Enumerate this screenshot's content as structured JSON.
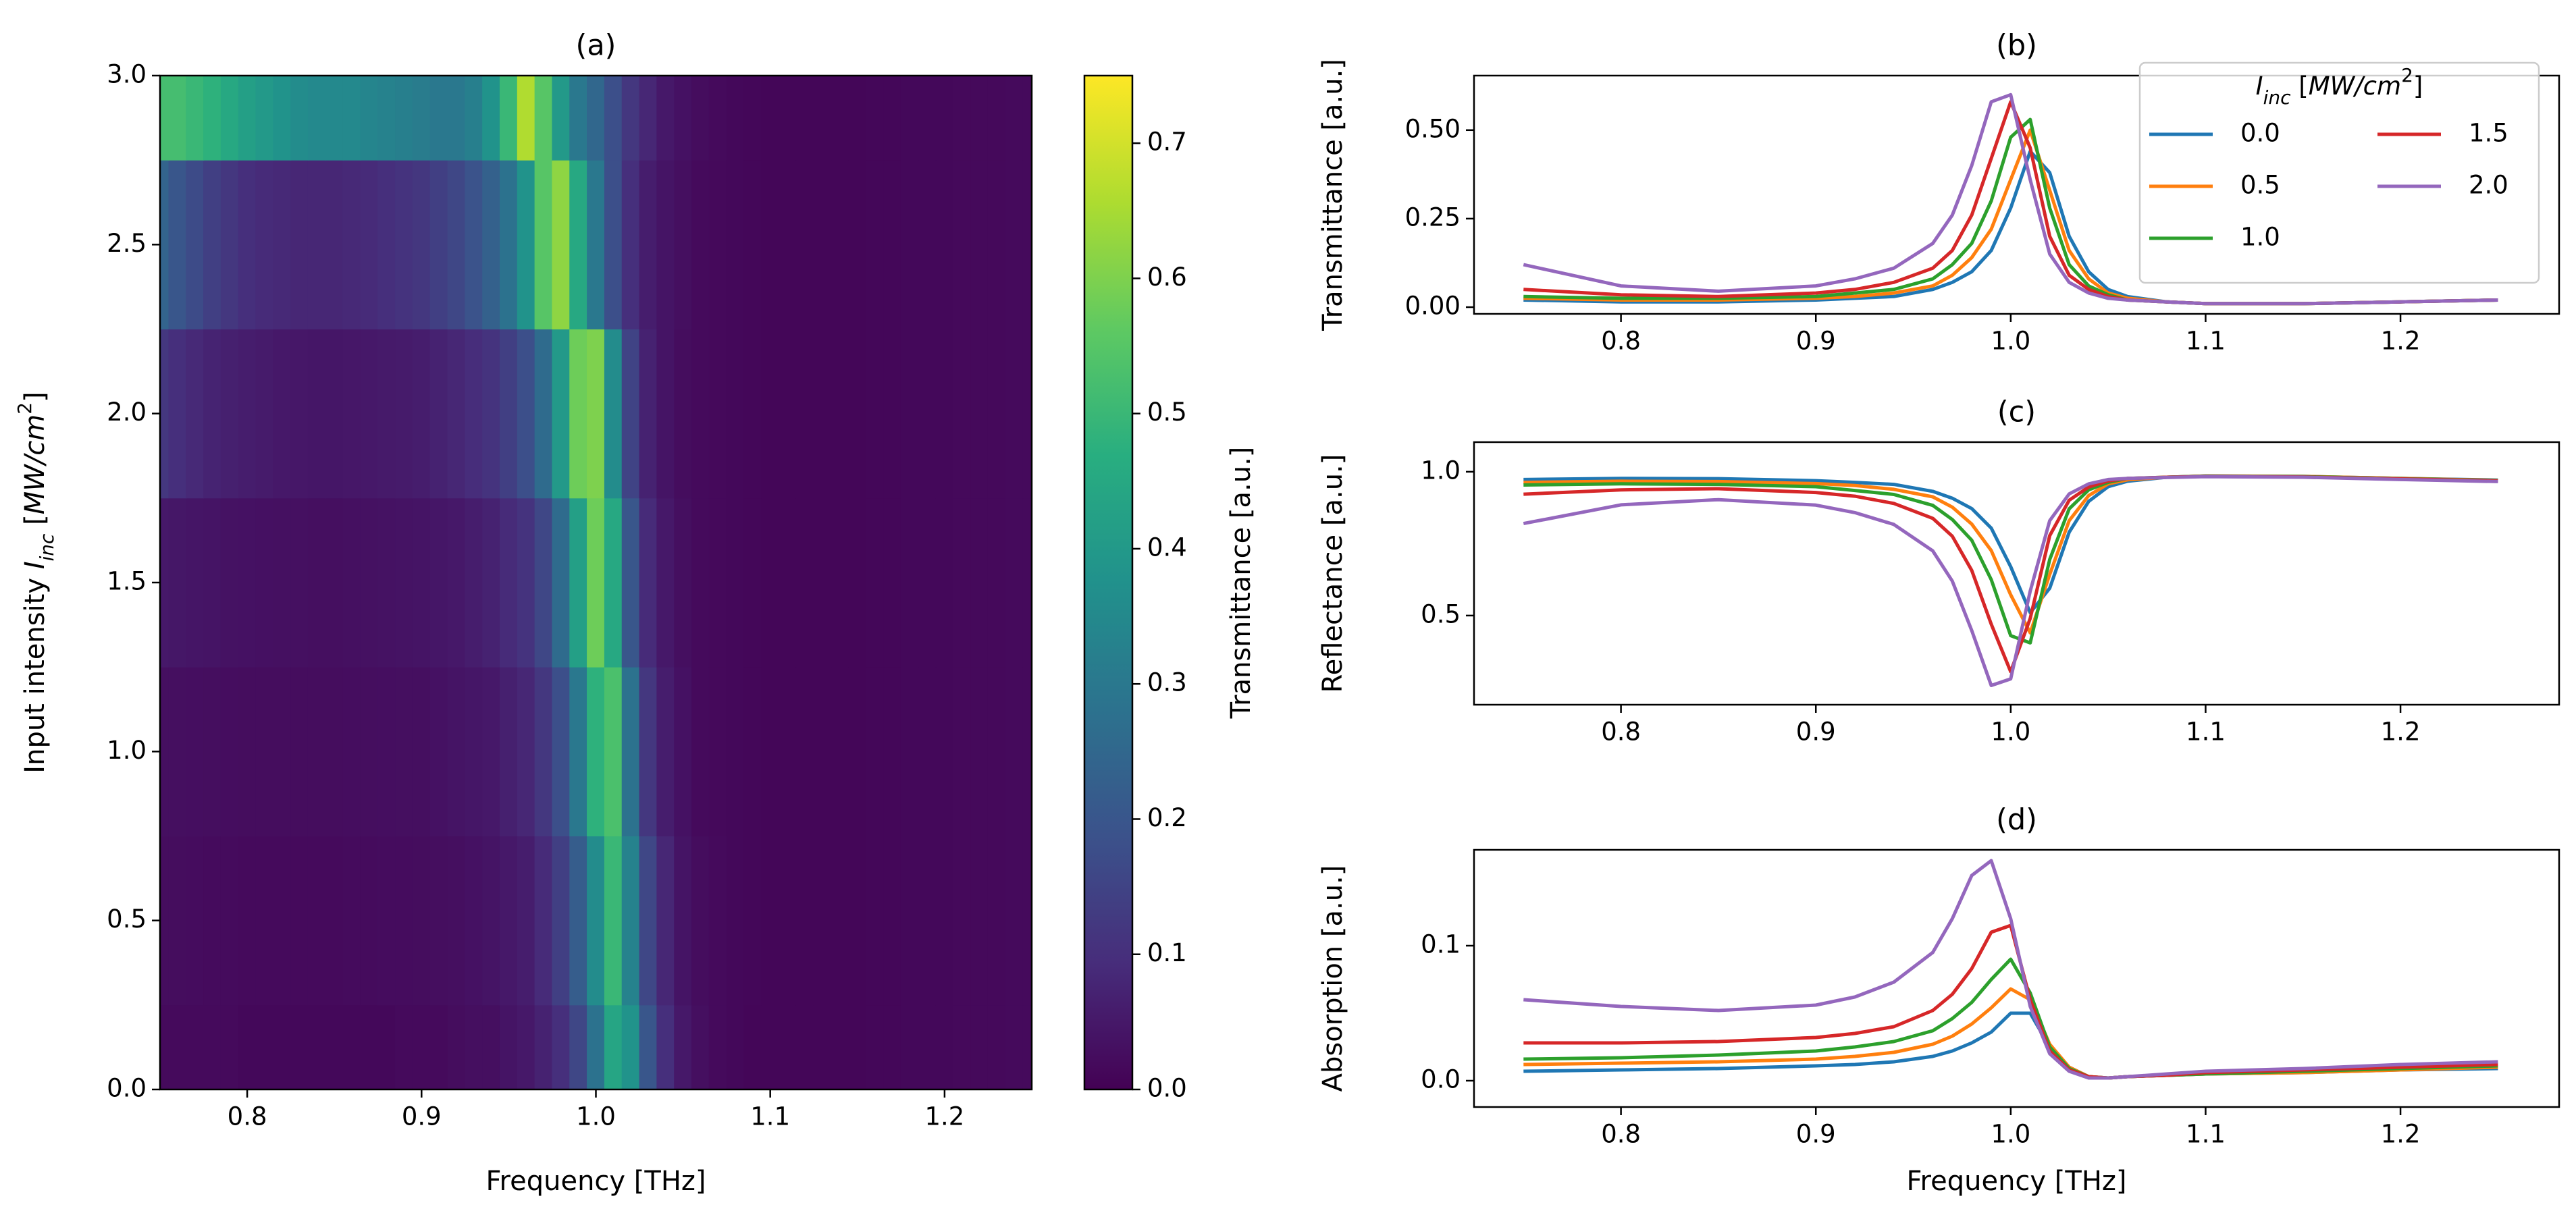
{
  "chart_data": [
    {
      "type": "heatmap",
      "title": "(a)",
      "xlabel": "Frequency [THz]",
      "ylabel": [
        {
          "text": "Input intensity "
        },
        {
          "text": "I",
          "style": "italic"
        },
        {
          "text": "inc",
          "style": "sub"
        },
        {
          "text": " ["
        },
        {
          "text": "MW/cm",
          "style": "italic"
        },
        {
          "text": "2",
          "style": "sup"
        },
        {
          "text": "]"
        }
      ],
      "x": [
        0.75,
        0.76,
        0.77,
        0.78,
        0.79,
        0.8,
        0.81,
        0.82,
        0.83,
        0.84,
        0.85,
        0.86,
        0.87,
        0.88,
        0.89,
        0.9,
        0.91,
        0.92,
        0.93,
        0.94,
        0.95,
        0.96,
        0.97,
        0.98,
        0.99,
        1.0,
        1.01,
        1.02,
        1.03,
        1.04,
        1.05,
        1.06,
        1.07,
        1.08,
        1.09,
        1.1,
        1.11,
        1.12,
        1.13,
        1.14,
        1.15,
        1.16,
        1.17,
        1.18,
        1.19,
        1.2,
        1.21,
        1.22,
        1.23,
        1.24,
        1.25
      ],
      "y": [
        0,
        0.5,
        1,
        1.5,
        2,
        2.5,
        3
      ],
      "values": [
        [
          0.02,
          0.02,
          0.02,
          0.02,
          0.02,
          0.015,
          0.015,
          0.015,
          0.015,
          0.015,
          0.015,
          0.015,
          0.015,
          0.015,
          0.02,
          0.02,
          0.02,
          0.025,
          0.03,
          0.03,
          0.04,
          0.05,
          0.07,
          0.1,
          0.16,
          0.28,
          0.44,
          0.38,
          0.2,
          0.1,
          0.05,
          0.03,
          0.02,
          0.015,
          0.01,
          0.01,
          0.01,
          0.01,
          0.01,
          0.01,
          0.01,
          0.012,
          0.013,
          0.014,
          0.015,
          0.015,
          0.016,
          0.017,
          0.018,
          0.019,
          0.02
        ],
        [
          0.025,
          0.025,
          0.024,
          0.022,
          0.021,
          0.02,
          0.02,
          0.02,
          0.02,
          0.02,
          0.02,
          0.021,
          0.022,
          0.023,
          0.024,
          0.025,
          0.027,
          0.03,
          0.035,
          0.04,
          0.05,
          0.06,
          0.09,
          0.14,
          0.22,
          0.36,
          0.5,
          0.33,
          0.16,
          0.08,
          0.04,
          0.025,
          0.02,
          0.015,
          0.012,
          0.01,
          0.01,
          0.01,
          0.01,
          0.01,
          0.01,
          0.012,
          0.013,
          0.014,
          0.015,
          0.015,
          0.016,
          0.017,
          0.018,
          0.019,
          0.02
        ],
        [
          0.03,
          0.03,
          0.028,
          0.027,
          0.026,
          0.025,
          0.025,
          0.025,
          0.025,
          0.025,
          0.025,
          0.026,
          0.027,
          0.028,
          0.029,
          0.03,
          0.035,
          0.04,
          0.045,
          0.05,
          0.065,
          0.08,
          0.12,
          0.18,
          0.3,
          0.48,
          0.53,
          0.28,
          0.12,
          0.06,
          0.035,
          0.02,
          0.017,
          0.015,
          0.012,
          0.01,
          0.01,
          0.01,
          0.01,
          0.01,
          0.01,
          0.012,
          0.013,
          0.014,
          0.015,
          0.015,
          0.016,
          0.017,
          0.018,
          0.019,
          0.02
        ],
        [
          0.05,
          0.046,
          0.043,
          0.04,
          0.037,
          0.035,
          0.033,
          0.032,
          0.031,
          0.03,
          0.03,
          0.032,
          0.034,
          0.036,
          0.038,
          0.04,
          0.045,
          0.05,
          0.06,
          0.07,
          0.09,
          0.11,
          0.16,
          0.26,
          0.42,
          0.58,
          0.45,
          0.2,
          0.09,
          0.05,
          0.03,
          0.02,
          0.017,
          0.015,
          0.012,
          0.01,
          0.01,
          0.01,
          0.01,
          0.01,
          0.01,
          0.012,
          0.013,
          0.014,
          0.015,
          0.015,
          0.016,
          0.017,
          0.018,
          0.019,
          0.02
        ],
        [
          0.12,
          0.1,
          0.085,
          0.072,
          0.065,
          0.06,
          0.055,
          0.05,
          0.047,
          0.045,
          0.045,
          0.047,
          0.05,
          0.053,
          0.056,
          0.06,
          0.07,
          0.08,
          0.095,
          0.11,
          0.14,
          0.18,
          0.26,
          0.4,
          0.58,
          0.6,
          0.36,
          0.15,
          0.07,
          0.04,
          0.025,
          0.02,
          0.017,
          0.015,
          0.012,
          0.01,
          0.01,
          0.01,
          0.01,
          0.01,
          0.01,
          0.012,
          0.013,
          0.014,
          0.015,
          0.015,
          0.016,
          0.017,
          0.018,
          0.019,
          0.02
        ],
        [
          0.24,
          0.2,
          0.17,
          0.14,
          0.12,
          0.1,
          0.09,
          0.085,
          0.08,
          0.08,
          0.08,
          0.085,
          0.09,
          0.1,
          0.11,
          0.12,
          0.14,
          0.16,
          0.19,
          0.23,
          0.28,
          0.38,
          0.55,
          0.62,
          0.45,
          0.3,
          0.18,
          0.1,
          0.06,
          0.04,
          0.03,
          0.02,
          0.017,
          0.015,
          0.012,
          0.01,
          0.01,
          0.01,
          0.01,
          0.01,
          0.01,
          0.012,
          0.013,
          0.014,
          0.015,
          0.015,
          0.016,
          0.017,
          0.018,
          0.019,
          0.02
        ],
        [
          0.52,
          0.52,
          0.5,
          0.48,
          0.45,
          0.42,
          0.4,
          0.38,
          0.36,
          0.35,
          0.35,
          0.35,
          0.34,
          0.33,
          0.32,
          0.31,
          0.3,
          0.3,
          0.32,
          0.38,
          0.5,
          0.66,
          0.55,
          0.4,
          0.3,
          0.25,
          0.18,
          0.12,
          0.08,
          0.05,
          0.035,
          0.025,
          0.02,
          0.015,
          0.012,
          0.01,
          0.01,
          0.01,
          0.01,
          0.01,
          0.01,
          0.012,
          0.013,
          0.014,
          0.015,
          0.015,
          0.016,
          0.017,
          0.018,
          0.019,
          0.02
        ]
      ],
      "xlim": [
        0.75,
        1.25
      ],
      "ylim": [
        0,
        3
      ],
      "xticks": [
        0.8,
        0.9,
        {
          "value": 1,
          "label": "1.0"
        },
        1.1,
        1.2
      ],
      "yticks": [
        {
          "value": 0,
          "label": "0.0"
        },
        0.5,
        {
          "value": 1,
          "label": "1.0"
        },
        1.5,
        {
          "value": 2,
          "label": "2.0"
        },
        2.5,
        {
          "value": 3,
          "label": "3.0"
        }
      ],
      "colormap": "viridis",
      "zlim": [
        0,
        0.75
      ],
      "zticks": [
        {
          "value": 0,
          "label": "0.0"
        },
        0.1,
        0.2,
        0.3,
        0.4,
        0.5,
        0.6,
        0.7
      ],
      "zlabel": "Transmittance [a.u.]"
    },
    {
      "type": "line",
      "title": "(b)",
      "ylabel": "Transmittance [a.u.]",
      "x": [
        0.75,
        0.8,
        0.85,
        0.9,
        0.92,
        0.94,
        0.96,
        0.97,
        0.98,
        0.99,
        1.0,
        1.01,
        1.02,
        1.03,
        1.04,
        1.05,
        1.06,
        1.08,
        1.1,
        1.15,
        1.2,
        1.25
      ],
      "series": [
        {
          "name": "0.0",
          "color": "#1f77b4",
          "values": [
            0.02,
            0.015,
            0.015,
            0.02,
            0.025,
            0.03,
            0.05,
            0.07,
            0.1,
            0.16,
            0.28,
            0.44,
            0.38,
            0.2,
            0.1,
            0.05,
            0.03,
            0.015,
            0.01,
            0.01,
            0.015,
            0.02
          ]
        },
        {
          "name": "0.5",
          "color": "#ff7f0e",
          "values": [
            0.025,
            0.02,
            0.02,
            0.025,
            0.03,
            0.04,
            0.06,
            0.09,
            0.14,
            0.22,
            0.36,
            0.5,
            0.33,
            0.16,
            0.08,
            0.04,
            0.025,
            0.015,
            0.01,
            0.01,
            0.015,
            0.02
          ]
        },
        {
          "name": "1.0",
          "color": "#2ca02c",
          "values": [
            0.03,
            0.025,
            0.025,
            0.03,
            0.04,
            0.05,
            0.08,
            0.12,
            0.18,
            0.3,
            0.48,
            0.53,
            0.28,
            0.12,
            0.06,
            0.035,
            0.02,
            0.015,
            0.01,
            0.01,
            0.015,
            0.02
          ]
        },
        {
          "name": "1.5",
          "color": "#d62728",
          "values": [
            0.05,
            0.035,
            0.03,
            0.04,
            0.05,
            0.07,
            0.11,
            0.16,
            0.26,
            0.42,
            0.58,
            0.45,
            0.2,
            0.09,
            0.05,
            0.03,
            0.02,
            0.015,
            0.01,
            0.01,
            0.015,
            0.02
          ]
        },
        {
          "name": "2.0",
          "color": "#9467bd",
          "values": [
            0.12,
            0.06,
            0.045,
            0.06,
            0.08,
            0.11,
            0.18,
            0.26,
            0.4,
            0.58,
            0.6,
            0.36,
            0.15,
            0.07,
            0.04,
            0.025,
            0.02,
            0.015,
            0.01,
            0.01,
            0.015,
            0.02
          ]
        }
      ],
      "legend_title": [
        {
          "text": "I",
          "style": "italic"
        },
        {
          "text": "inc",
          "style": "sub"
        },
        {
          "text": " ["
        },
        {
          "text": "MW/cm",
          "style": "italic"
        },
        {
          "text": "2",
          "style": "sup"
        },
        {
          "text": "]"
        }
      ],
      "legend": "upper right",
      "legend_columns": 2,
      "xlim": [
        0.7246,
        1.2814
      ],
      "ylim": [
        -0.019,
        0.654
      ],
      "xticks": [
        0.8,
        0.9,
        {
          "value": 1,
          "label": "1.0"
        },
        1.1,
        1.2
      ],
      "yticks": [
        {
          "value": 0,
          "label": "0.00"
        },
        0.25,
        {
          "value": 0.5,
          "label": "0.50"
        }
      ]
    },
    {
      "type": "line",
      "title": "(c)",
      "ylabel": "Reflectance [a.u.]",
      "x": [
        0.75,
        0.8,
        0.85,
        0.9,
        0.92,
        0.94,
        0.96,
        0.97,
        0.98,
        0.99,
        1.0,
        1.01,
        1.02,
        1.03,
        1.04,
        1.05,
        1.06,
        1.08,
        1.1,
        1.15,
        1.2,
        1.25
      ],
      "series": [
        {
          "name": "0.0",
          "color": "#1f77b4",
          "values": [
            0.973,
            0.977,
            0.976,
            0.969,
            0.963,
            0.956,
            0.932,
            0.908,
            0.872,
            0.804,
            0.67,
            0.51,
            0.595,
            0.79,
            0.897,
            0.948,
            0.967,
            0.981,
            0.985,
            0.984,
            0.977,
            0.971
          ]
        },
        {
          "name": "0.5",
          "color": "#ff7f0e",
          "values": [
            0.963,
            0.967,
            0.966,
            0.959,
            0.952,
            0.939,
            0.913,
            0.877,
            0.818,
            0.726,
            0.572,
            0.44,
            0.643,
            0.83,
            0.917,
            0.958,
            0.972,
            0.981,
            0.985,
            0.984,
            0.977,
            0.97
          ]
        },
        {
          "name": "1.0",
          "color": "#2ca02c",
          "values": [
            0.954,
            0.958,
            0.956,
            0.948,
            0.935,
            0.921,
            0.883,
            0.834,
            0.762,
            0.625,
            0.43,
            0.405,
            0.695,
            0.871,
            0.937,
            0.963,
            0.977,
            0.981,
            0.985,
            0.983,
            0.976,
            0.969
          ]
        },
        {
          "name": "1.5",
          "color": "#d62728",
          "values": [
            0.922,
            0.937,
            0.941,
            0.928,
            0.915,
            0.89,
            0.838,
            0.776,
            0.657,
            0.47,
            0.305,
            0.49,
            0.778,
            0.901,
            0.947,
            0.968,
            0.977,
            0.981,
            0.984,
            0.982,
            0.975,
            0.968
          ]
        },
        {
          "name": "2.0",
          "color": "#9467bd",
          "values": [
            0.82,
            0.885,
            0.903,
            0.884,
            0.858,
            0.817,
            0.725,
            0.62,
            0.448,
            0.257,
            0.28,
            0.585,
            0.83,
            0.923,
            0.958,
            0.973,
            0.977,
            0.98,
            0.983,
            0.981,
            0.973,
            0.966
          ]
        }
      ],
      "xlim": [
        0.7246,
        1.2814
      ],
      "ylim": [
        0.19,
        1.103
      ],
      "xticks": [
        0.8,
        0.9,
        {
          "value": 1,
          "label": "1.0"
        },
        1.1,
        1.2
      ],
      "yticks": [
        0.5,
        {
          "value": 1,
          "label": "1.0"
        }
      ]
    },
    {
      "type": "line",
      "title": "(d)",
      "ylabel": "Absorption [a.u.]",
      "xlabel": "Frequency [THz]",
      "x": [
        0.75,
        0.8,
        0.85,
        0.9,
        0.92,
        0.94,
        0.96,
        0.97,
        0.98,
        0.99,
        1.0,
        1.01,
        1.02,
        1.03,
        1.04,
        1.05,
        1.06,
        1.08,
        1.1,
        1.15,
        1.2,
        1.25
      ],
      "series": [
        {
          "name": "0.0",
          "color": "#1f77b4",
          "values": [
            0.007,
            0.008,
            0.009,
            0.011,
            0.012,
            0.014,
            0.018,
            0.022,
            0.028,
            0.036,
            0.05,
            0.05,
            0.025,
            0.01,
            0.003,
            0.002,
            0.003,
            0.004,
            0.005,
            0.006,
            0.008,
            0.009
          ]
        },
        {
          "name": "0.5",
          "color": "#ff7f0e",
          "values": [
            0.012,
            0.013,
            0.014,
            0.016,
            0.018,
            0.021,
            0.027,
            0.033,
            0.042,
            0.054,
            0.068,
            0.06,
            0.027,
            0.01,
            0.003,
            0.002,
            0.003,
            0.004,
            0.005,
            0.006,
            0.008,
            0.01
          ]
        },
        {
          "name": "1.0",
          "color": "#2ca02c",
          "values": [
            0.016,
            0.017,
            0.019,
            0.022,
            0.025,
            0.029,
            0.037,
            0.046,
            0.058,
            0.075,
            0.09,
            0.065,
            0.025,
            0.009,
            0.003,
            0.002,
            0.003,
            0.004,
            0.005,
            0.007,
            0.009,
            0.011
          ]
        },
        {
          "name": "1.5",
          "color": "#d62728",
          "values": [
            0.028,
            0.028,
            0.029,
            0.032,
            0.035,
            0.04,
            0.052,
            0.064,
            0.083,
            0.11,
            0.115,
            0.06,
            0.022,
            0.008,
            0.003,
            0.002,
            0.003,
            0.004,
            0.006,
            0.008,
            0.01,
            0.012
          ]
        },
        {
          "name": "2.0",
          "color": "#9467bd",
          "values": [
            0.06,
            0.055,
            0.052,
            0.056,
            0.062,
            0.073,
            0.095,
            0.12,
            0.152,
            0.163,
            0.12,
            0.055,
            0.02,
            0.007,
            0.002,
            0.002,
            0.003,
            0.005,
            0.007,
            0.009,
            0.012,
            0.014
          ]
        }
      ],
      "xlim": [
        0.7246,
        1.2814
      ],
      "ylim": [
        -0.0195,
        0.171
      ],
      "xticks": [
        0.8,
        0.9,
        {
          "value": 1,
          "label": "1.0"
        },
        1.1,
        1.2
      ],
      "yticks": [
        {
          "value": 0,
          "label": "0.0"
        },
        0.1
      ]
    }
  ]
}
